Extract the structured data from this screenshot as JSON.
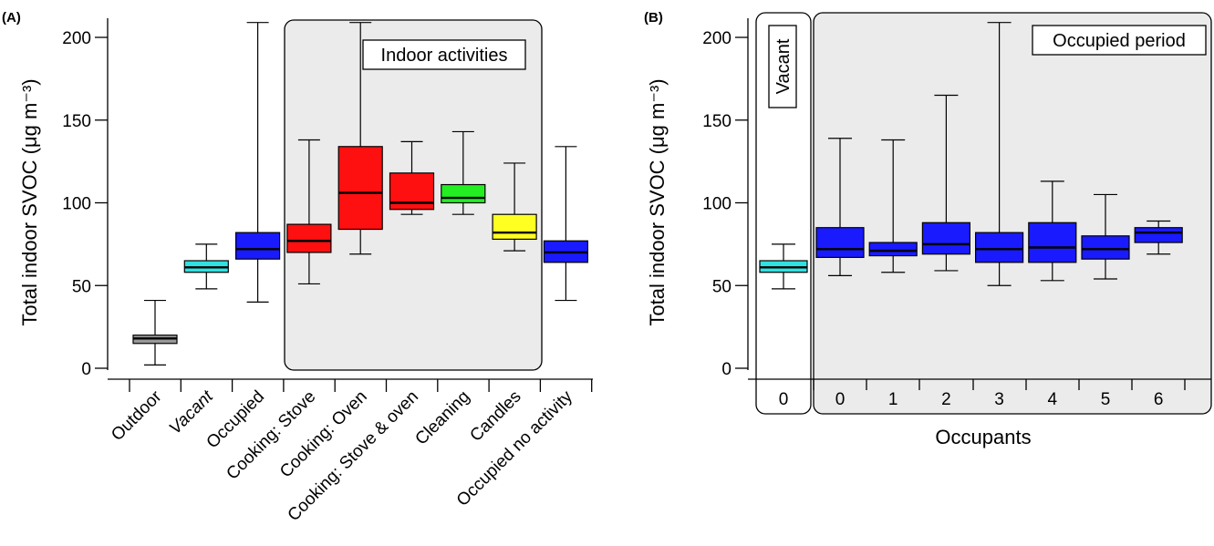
{
  "chart_data": [
    {
      "panel": "(A)",
      "type": "box",
      "ylabel": "Total indoor SVOC (μg m⁻³)",
      "ylim": [
        0,
        210
      ],
      "yticks": [
        0,
        50,
        100,
        150,
        200
      ],
      "annotation": "Indoor activities",
      "highlight_categories": [
        "Cooking: Stove",
        "Cooking: Oven",
        "Cooking: Stove & oven",
        "Cleaning",
        "Candles"
      ],
      "categories": [
        "Outdoor",
        "Vacant",
        "Occupied",
        "Cooking: Stove",
        "Cooking: Oven",
        "Cooking: Stove & oven",
        "Cleaning",
        "Candles",
        "Occupied no activity"
      ],
      "italic_categories": [
        "Vacant"
      ],
      "boxes": [
        {
          "min": 2,
          "q1": 15,
          "median": 18,
          "q3": 20,
          "max": 41,
          "color": "#999999"
        },
        {
          "min": 48,
          "q1": 58,
          "median": 61,
          "q3": 65,
          "max": 75,
          "color": "#33e0e0"
        },
        {
          "min": 40,
          "q1": 66,
          "median": 72,
          "q3": 82,
          "max": 209,
          "color": "#1a1aff"
        },
        {
          "min": 51,
          "q1": 70,
          "median": 77,
          "q3": 87,
          "max": 138,
          "color": "#ff1010"
        },
        {
          "min": 69,
          "q1": 84,
          "median": 106,
          "q3": 134,
          "max": 209,
          "color": "#ff1010"
        },
        {
          "min": 93,
          "q1": 96,
          "median": 100,
          "q3": 118,
          "max": 137,
          "color": "#ff1010"
        },
        {
          "min": 93,
          "q1": 100,
          "median": 103,
          "q3": 111,
          "max": 143,
          "color": "#22ee22"
        },
        {
          "min": 71,
          "q1": 78,
          "median": 82,
          "q3": 93,
          "max": 124,
          "color": "#ffff22"
        },
        {
          "min": 41,
          "q1": 64,
          "median": 70,
          "q3": 77,
          "max": 134,
          "color": "#1a1aff"
        }
      ]
    },
    {
      "panel": "(B)",
      "type": "box",
      "ylabel": "Total indoor SVOC (μg m⁻³)",
      "xlabel": "Occupants",
      "ylim": [
        0,
        210
      ],
      "yticks": [
        0,
        50,
        100,
        150,
        200
      ],
      "group_labels": [
        "Vacant",
        "Occupied period"
      ],
      "categories": [
        "0",
        "0",
        "1",
        "2",
        "3",
        "4",
        "5",
        "6"
      ],
      "boxes": [
        {
          "min": 48,
          "q1": 58,
          "median": 61,
          "q3": 65,
          "max": 75,
          "color": "#33e0e0"
        },
        {
          "min": 56,
          "q1": 67,
          "median": 72,
          "q3": 85,
          "max": 139,
          "color": "#1a1aff"
        },
        {
          "min": 58,
          "q1": 68,
          "median": 71,
          "q3": 76,
          "max": 138,
          "color": "#1a1aff"
        },
        {
          "min": 59,
          "q1": 69,
          "median": 75,
          "q3": 88,
          "max": 165,
          "color": "#1a1aff"
        },
        {
          "min": 50,
          "q1": 64,
          "median": 72,
          "q3": 82,
          "max": 209,
          "color": "#1a1aff"
        },
        {
          "min": 53,
          "q1": 64,
          "median": 73,
          "q3": 88,
          "max": 113,
          "color": "#1a1aff"
        },
        {
          "min": 54,
          "q1": 66,
          "median": 72,
          "q3": 80,
          "max": 105,
          "color": "#1a1aff"
        },
        {
          "min": 69,
          "q1": 76,
          "median": 82,
          "q3": 85,
          "max": 89,
          "color": "#1a1aff"
        }
      ]
    }
  ]
}
